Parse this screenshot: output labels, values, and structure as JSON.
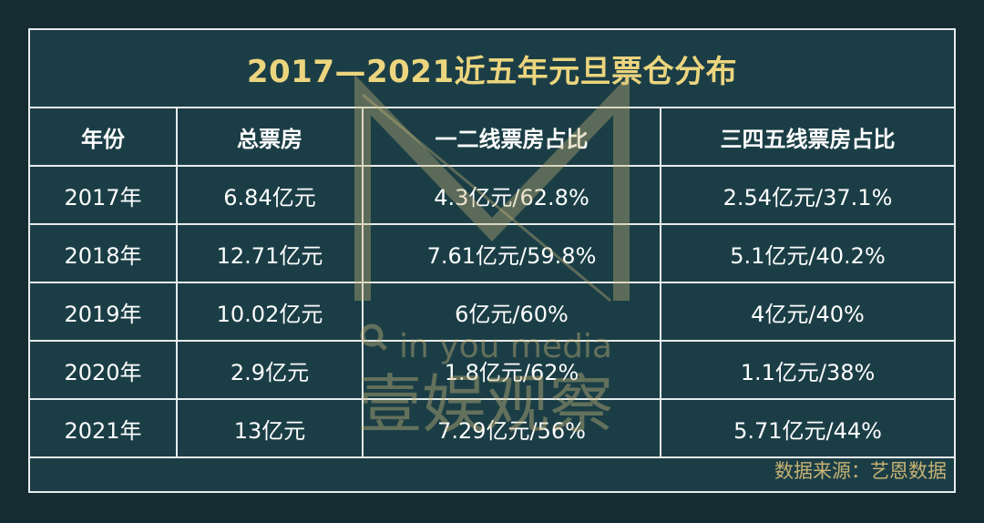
{
  "title": "2017—2021近五年元旦票仓分布",
  "table": {
    "headers": [
      "年份",
      "总票房",
      "一二线票房占比",
      "三四五线票房占比"
    ],
    "rows": [
      [
        "2017年",
        "6.84亿元",
        "4.3亿元/62.8%",
        "2.54亿元/37.1%"
      ],
      [
        "2018年",
        "12.71亿元",
        "7.61亿元/59.8%",
        "5.1亿元/40.2%"
      ],
      [
        "2019年",
        "10.02亿元",
        "6亿元/60%",
        "4亿元/40%"
      ],
      [
        "2020年",
        "2.9亿元",
        "1.8亿元/62%",
        "1.1亿元/38%"
      ],
      [
        "2021年",
        "13亿元",
        "7.29亿元/56%",
        "5.71亿元/44%"
      ]
    ]
  },
  "source": "数据来源：艺恩数据",
  "watermark": {
    "text_latin": "in you media",
    "text_cn": "壹娱观察"
  },
  "colors": {
    "background": "#152c33",
    "table": "#1b3e46",
    "title": "#ecd57e",
    "source": "#c6b274",
    "border": "#e8ecec"
  }
}
